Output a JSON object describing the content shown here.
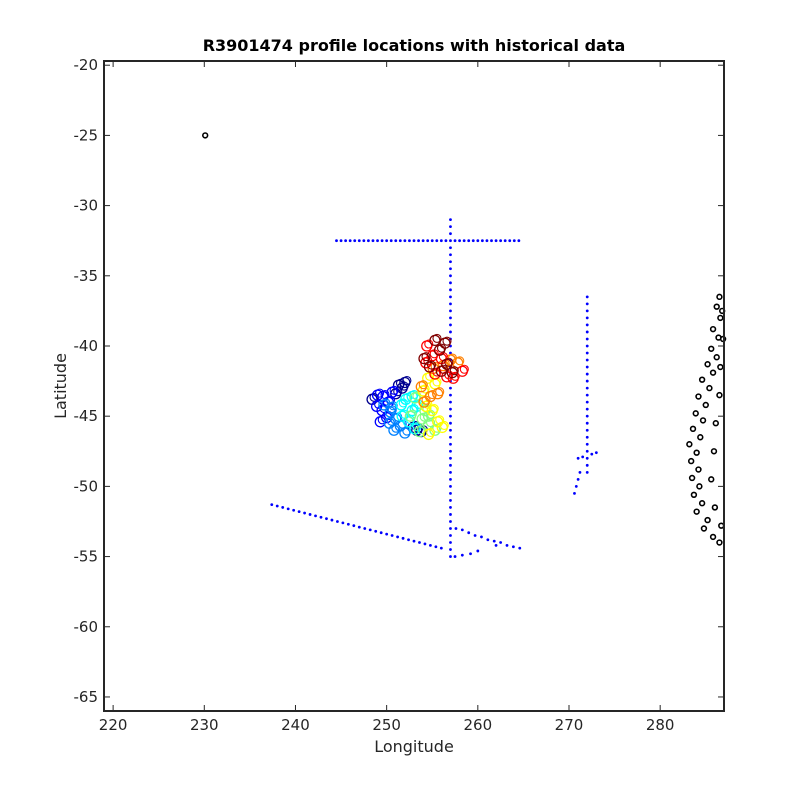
{
  "chart_data": {
    "type": "scatter",
    "title": "R3901474 profile locations with historical data",
    "xlabel": "Longitude",
    "ylabel": "Latitude",
    "xlim": [
      219,
      287
    ],
    "ylim": [
      -66,
      -19.7
    ],
    "xticks": [
      220,
      230,
      240,
      250,
      260,
      270,
      280
    ],
    "yticks": [
      -20,
      -25,
      -30,
      -35,
      -40,
      -45,
      -50,
      -55,
      -60,
      -65
    ],
    "grid": false,
    "legend": "none",
    "series": [
      {
        "style": "historical-points",
        "color": "#0000ff",
        "points": [
          [
            244.5,
            -32.5
          ],
          [
            245.0,
            -32.5
          ],
          [
            245.5,
            -32.5
          ],
          [
            246.0,
            -32.5
          ],
          [
            246.5,
            -32.5
          ],
          [
            247.0,
            -32.5
          ],
          [
            247.5,
            -32.5
          ],
          [
            248.0,
            -32.5
          ],
          [
            248.5,
            -32.5
          ],
          [
            249.0,
            -32.5
          ],
          [
            249.5,
            -32.5
          ],
          [
            250.0,
            -32.5
          ],
          [
            250.5,
            -32.5
          ],
          [
            251.0,
            -32.5
          ],
          [
            251.5,
            -32.5
          ],
          [
            252.0,
            -32.5
          ],
          [
            252.5,
            -32.5
          ],
          [
            253.0,
            -32.5
          ],
          [
            253.5,
            -32.5
          ],
          [
            254.0,
            -32.5
          ],
          [
            254.5,
            -32.5
          ],
          [
            255.0,
            -32.5
          ],
          [
            255.5,
            -32.5
          ],
          [
            256.0,
            -32.5
          ],
          [
            256.5,
            -32.5
          ],
          [
            257.0,
            -32.5
          ],
          [
            257.5,
            -32.5
          ],
          [
            258.0,
            -32.5
          ],
          [
            258.5,
            -32.5
          ],
          [
            259.0,
            -32.5
          ],
          [
            259.5,
            -32.5
          ],
          [
            260.0,
            -32.5
          ],
          [
            260.5,
            -32.5
          ],
          [
            261.0,
            -32.5
          ],
          [
            261.5,
            -32.5
          ],
          [
            262.0,
            -32.5
          ],
          [
            262.5,
            -32.5
          ],
          [
            263.0,
            -32.5
          ],
          [
            263.5,
            -32.5
          ],
          [
            264.0,
            -32.5
          ],
          [
            264.5,
            -32.5
          ],
          [
            257.0,
            -31.0
          ],
          [
            257.0,
            -31.5
          ],
          [
            257.0,
            -32.0
          ],
          [
            257.0,
            -33.0
          ],
          [
            257.0,
            -33.5
          ],
          [
            257.0,
            -34.0
          ],
          [
            257.0,
            -34.5
          ],
          [
            257.0,
            -35.0
          ],
          [
            257.0,
            -35.5
          ],
          [
            257.0,
            -36.0
          ],
          [
            257.0,
            -36.5
          ],
          [
            257.0,
            -37.0
          ],
          [
            257.0,
            -37.5
          ],
          [
            257.0,
            -38.0
          ],
          [
            257.0,
            -38.5
          ],
          [
            257.0,
            -39.0
          ],
          [
            257.0,
            -39.5
          ],
          [
            257.0,
            -40.0
          ],
          [
            257.0,
            -40.5
          ],
          [
            257.0,
            -41.0
          ],
          [
            257.0,
            -41.5
          ],
          [
            257.0,
            -42.0
          ],
          [
            257.0,
            -42.5
          ],
          [
            257.0,
            -43.0
          ],
          [
            257.0,
            -43.5
          ],
          [
            257.0,
            -44.0
          ],
          [
            257.0,
            -44.5
          ],
          [
            257.0,
            -45.0
          ],
          [
            257.0,
            -45.5
          ],
          [
            257.0,
            -46.0
          ],
          [
            257.0,
            -46.5
          ],
          [
            257.0,
            -47.0
          ],
          [
            257.0,
            -47.5
          ],
          [
            257.0,
            -48.0
          ],
          [
            257.0,
            -48.5
          ],
          [
            257.0,
            -49.0
          ],
          [
            257.0,
            -49.5
          ],
          [
            257.0,
            -50.0
          ],
          [
            257.0,
            -50.5
          ],
          [
            257.0,
            -51.0
          ],
          [
            257.0,
            -51.5
          ],
          [
            257.0,
            -52.0
          ],
          [
            257.0,
            -52.5
          ],
          [
            257.0,
            -53.0
          ],
          [
            257.0,
            -53.5
          ],
          [
            257.0,
            -54.0
          ],
          [
            257.0,
            -54.5
          ],
          [
            257.0,
            -55.0
          ],
          [
            237.4,
            -51.3
          ],
          [
            238.0,
            -51.4
          ],
          [
            238.6,
            -51.5
          ],
          [
            239.2,
            -51.6
          ],
          [
            239.8,
            -51.7
          ],
          [
            240.4,
            -51.8
          ],
          [
            241.0,
            -51.9
          ],
          [
            241.6,
            -52.0
          ],
          [
            242.2,
            -52.1
          ],
          [
            242.8,
            -52.2
          ],
          [
            243.4,
            -52.3
          ],
          [
            244.0,
            -52.4
          ],
          [
            244.6,
            -52.5
          ],
          [
            245.2,
            -52.6
          ],
          [
            245.8,
            -52.7
          ],
          [
            246.4,
            -52.8
          ],
          [
            247.0,
            -52.9
          ],
          [
            247.6,
            -53.0
          ],
          [
            248.2,
            -53.1
          ],
          [
            248.8,
            -53.2
          ],
          [
            249.4,
            -53.3
          ],
          [
            250.0,
            -53.4
          ],
          [
            250.6,
            -53.5
          ],
          [
            251.2,
            -53.6
          ],
          [
            251.8,
            -53.7
          ],
          [
            252.4,
            -53.8
          ],
          [
            253.0,
            -53.9
          ],
          [
            253.6,
            -54.0
          ],
          [
            254.2,
            -54.1
          ],
          [
            254.8,
            -54.2
          ],
          [
            255.4,
            -54.3
          ],
          [
            256.0,
            -54.4
          ],
          [
            257.6,
            -53.0
          ],
          [
            258.3,
            -53.1
          ],
          [
            259.0,
            -53.3
          ],
          [
            259.7,
            -53.5
          ],
          [
            260.4,
            -53.6
          ],
          [
            261.1,
            -53.8
          ],
          [
            261.8,
            -53.9
          ],
          [
            262.5,
            -54.0
          ],
          [
            263.2,
            -54.2
          ],
          [
            263.9,
            -54.3
          ],
          [
            264.6,
            -54.4
          ],
          [
            257.5,
            -55.0
          ],
          [
            258.3,
            -54.9
          ],
          [
            259.2,
            -54.8
          ],
          [
            260.0,
            -54.6
          ],
          [
            262.0,
            -54.2
          ],
          [
            272.0,
            -36.5
          ],
          [
            272.0,
            -37.0
          ],
          [
            272.0,
            -37.5
          ],
          [
            272.0,
            -38.0
          ],
          [
            272.0,
            -38.5
          ],
          [
            272.0,
            -39.0
          ],
          [
            272.0,
            -39.5
          ],
          [
            272.0,
            -40.0
          ],
          [
            272.0,
            -40.5
          ],
          [
            272.0,
            -41.0
          ],
          [
            272.0,
            -41.5
          ],
          [
            272.0,
            -42.0
          ],
          [
            272.0,
            -42.5
          ],
          [
            272.0,
            -43.0
          ],
          [
            272.0,
            -43.5
          ],
          [
            272.0,
            -44.0
          ],
          [
            272.0,
            -44.5
          ],
          [
            272.0,
            -45.0
          ],
          [
            272.0,
            -45.5
          ],
          [
            272.0,
            -46.0
          ],
          [
            272.0,
            -46.5
          ],
          [
            272.0,
            -47.0
          ],
          [
            272.0,
            -47.5
          ],
          [
            272.0,
            -48.0
          ],
          [
            272.0,
            -48.5
          ],
          [
            272.0,
            -49.0
          ],
          [
            270.6,
            -50.5
          ],
          [
            270.8,
            -50.0
          ],
          [
            271.0,
            -49.5
          ],
          [
            271.2,
            -49.0
          ],
          [
            271.0,
            -48.0
          ],
          [
            271.5,
            -47.9
          ],
          [
            272.5,
            -47.7
          ],
          [
            273.0,
            -47.6
          ]
        ]
      },
      {
        "style": "float-profiles",
        "colors": [
          "#00008f",
          "#0000ff",
          "#0080ff",
          "#00ffff",
          "#80ff80",
          "#ffff00",
          "#ff8000",
          "#ff0000",
          "#800000"
        ],
        "points": [
          [
            253.3,
            -46.0
          ],
          [
            253.8,
            -46.1
          ],
          [
            252.9,
            -45.8
          ],
          [
            251.7,
            -43.0
          ],
          [
            251.3,
            -42.8
          ],
          [
            252.0,
            -42.6
          ],
          [
            251.0,
            -43.4
          ],
          [
            248.4,
            -43.8
          ],
          [
            249.0,
            -43.5
          ],
          [
            249.6,
            -43.6
          ],
          [
            250.2,
            -44.0
          ],
          [
            249.5,
            -44.6
          ],
          [
            250.6,
            -43.3
          ],
          [
            250.0,
            -45.1
          ],
          [
            248.9,
            -44.3
          ],
          [
            249.3,
            -45.4
          ],
          [
            250.4,
            -44.7
          ],
          [
            249.7,
            -44.2
          ],
          [
            250.3,
            -45.5
          ],
          [
            251.0,
            -45.2
          ],
          [
            250.8,
            -46.0
          ],
          [
            251.5,
            -45.7
          ],
          [
            252.0,
            -46.2
          ],
          [
            250.5,
            -44.4
          ],
          [
            251.7,
            -45.0
          ],
          [
            252.4,
            -45.4
          ],
          [
            252.8,
            -44.6
          ],
          [
            253.1,
            -45.9
          ],
          [
            251.6,
            -44.2
          ],
          [
            252.1,
            -43.8
          ],
          [
            252.8,
            -43.6
          ],
          [
            253.3,
            -44.3
          ],
          [
            253.9,
            -45.2
          ],
          [
            254.2,
            -44.6
          ],
          [
            253.1,
            -43.7
          ],
          [
            254.6,
            -45.6
          ],
          [
            253.6,
            -46.1
          ],
          [
            252.6,
            -45.0
          ],
          [
            254.6,
            -45.0
          ],
          [
            255.3,
            -46.0
          ],
          [
            255.6,
            -45.4
          ],
          [
            254.6,
            -46.3
          ],
          [
            256.1,
            -45.8
          ],
          [
            254.3,
            -44.3
          ],
          [
            255.0,
            -44.6
          ],
          [
            254.0,
            -43.2
          ],
          [
            254.5,
            -42.3
          ],
          [
            255.3,
            -42.7
          ],
          [
            254.1,
            -44.0
          ],
          [
            255.6,
            -43.4
          ],
          [
            255.1,
            -41.6
          ],
          [
            253.8,
            -42.9
          ],
          [
            254.8,
            -43.6
          ],
          [
            256.2,
            -41.4
          ],
          [
            257.0,
            -41.0
          ],
          [
            257.8,
            -41.2
          ],
          [
            258.3,
            -41.8
          ],
          [
            256.6,
            -42.2
          ],
          [
            255.3,
            -42.0
          ],
          [
            254.3,
            -41.2
          ],
          [
            257.3,
            -42.3
          ],
          [
            256.0,
            -40.9
          ],
          [
            254.4,
            -40.0
          ],
          [
            255.0,
            -40.7
          ],
          [
            255.8,
            -40.3
          ],
          [
            256.4,
            -39.8
          ],
          [
            254.1,
            -40.9
          ],
          [
            256.6,
            -41.3
          ],
          [
            255.3,
            -39.6
          ],
          [
            257.2,
            -41.9
          ],
          [
            256.0,
            -41.8
          ],
          [
            254.7,
            -41.5
          ]
        ]
      },
      {
        "style": "coastline",
        "color": "#000000",
        "points": [
          [
            230.1,
            -25.0
          ],
          [
            286.5,
            -36.5
          ],
          [
            286.2,
            -37.2
          ],
          [
            286.6,
            -38.0
          ],
          [
            285.8,
            -38.8
          ],
          [
            286.4,
            -39.4
          ],
          [
            285.6,
            -40.2
          ],
          [
            286.2,
            -40.8
          ],
          [
            285.2,
            -41.3
          ],
          [
            285.8,
            -41.9
          ],
          [
            284.6,
            -42.4
          ],
          [
            285.4,
            -43.0
          ],
          [
            284.2,
            -43.6
          ],
          [
            285.0,
            -44.2
          ],
          [
            283.9,
            -44.8
          ],
          [
            284.7,
            -45.3
          ],
          [
            283.6,
            -45.9
          ],
          [
            284.4,
            -46.5
          ],
          [
            283.2,
            -47.0
          ],
          [
            284.0,
            -47.6
          ],
          [
            283.4,
            -48.2
          ],
          [
            284.2,
            -48.8
          ],
          [
            283.5,
            -49.4
          ],
          [
            284.3,
            -50.0
          ],
          [
            283.7,
            -50.6
          ],
          [
            284.6,
            -51.2
          ],
          [
            284.0,
            -51.8
          ],
          [
            285.2,
            -52.4
          ],
          [
            284.8,
            -53.0
          ],
          [
            285.8,
            -53.6
          ],
          [
            286.5,
            -54.0
          ],
          [
            286.8,
            -37.5
          ],
          [
            286.9,
            -39.5
          ],
          [
            286.6,
            -41.5
          ],
          [
            286.5,
            -43.5
          ],
          [
            286.1,
            -45.5
          ],
          [
            285.9,
            -47.5
          ],
          [
            285.6,
            -49.5
          ],
          [
            286.0,
            -51.5
          ],
          [
            286.7,
            -52.8
          ]
        ]
      }
    ]
  }
}
